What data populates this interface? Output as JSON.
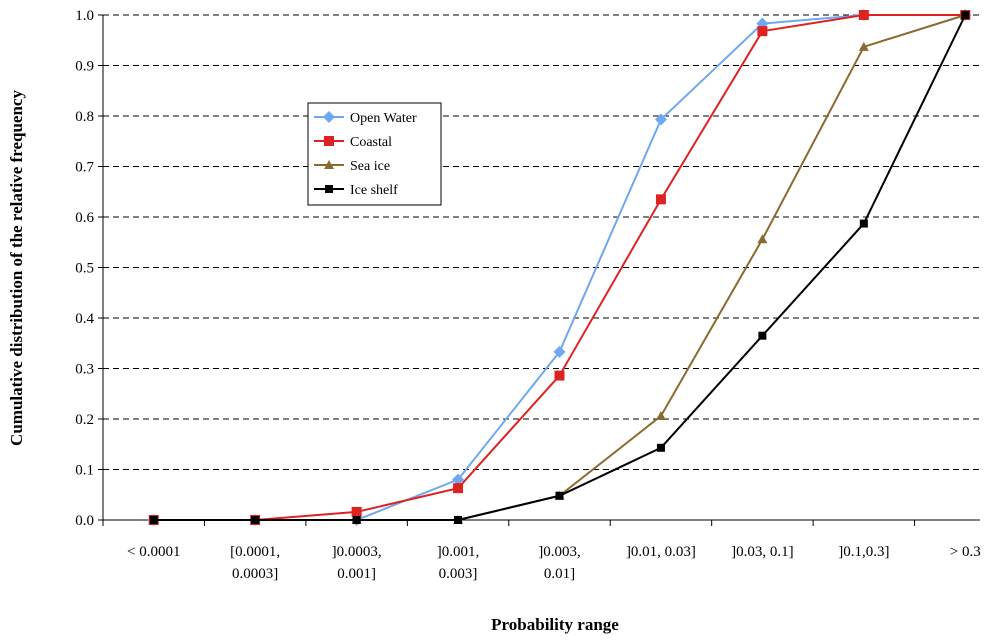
{
  "chart_data": {
    "type": "line",
    "title": "",
    "xlabel": "Probability range",
    "ylabel": "Cumulative distribution of the relative frequency",
    "ylim": [
      0,
      1.0
    ],
    "yticks": [
      "0.0",
      "0.1",
      "0.2",
      "0.3",
      "0.4",
      "0.5",
      "0.6",
      "0.7",
      "0.8",
      "0.9",
      "1.0"
    ],
    "grid": "horizontal dashed",
    "legend_position": "upper-left inside plot",
    "categories": [
      [
        "< 0.0001"
      ],
      [
        "[0.0001,",
        "0.0003]"
      ],
      [
        "]0.0003,",
        "0.001]"
      ],
      [
        "]0.001,",
        "0.003]"
      ],
      [
        "]0.003,",
        "0.01]"
      ],
      [
        "]0.01, 0.03]"
      ],
      [
        "]0.03, 0.1]"
      ],
      [
        "]0.1,0.3]"
      ],
      [
        "> 0.3"
      ]
    ],
    "series": [
      {
        "name": "Open Water",
        "color": "#6fa8f0",
        "marker": "diamond",
        "values": [
          0.0,
          0.0,
          0.0,
          0.08,
          0.333,
          0.793,
          0.983,
          1.0,
          1.0
        ]
      },
      {
        "name": "Coastal",
        "color": "#dd2222",
        "marker": "square",
        "values": [
          0.0,
          0.0,
          0.016,
          0.063,
          0.286,
          0.635,
          0.968,
          1.0,
          1.0
        ]
      },
      {
        "name": "Sea ice",
        "color": "#8b6a2f",
        "marker": "triangle",
        "values": [
          0.0,
          0.0,
          0.0,
          0.0,
          0.048,
          0.206,
          0.556,
          0.937,
          1.0
        ]
      },
      {
        "name": "Ice shelf",
        "color": "#000000",
        "marker": "square-small",
        "values": [
          0.0,
          0.0,
          0.0,
          0.0,
          0.048,
          0.143,
          0.365,
          0.587,
          1.0
        ]
      }
    ]
  }
}
